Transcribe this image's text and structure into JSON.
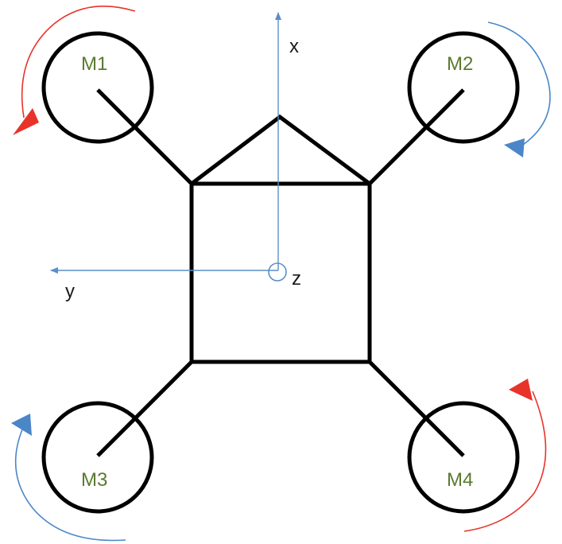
{
  "diagram": {
    "axes": {
      "x_label": "x",
      "y_label": "y",
      "z_label": "z",
      "color": "#5b8ec9"
    },
    "motors": [
      {
        "label": "M1",
        "rotation": "counterclockwise",
        "arrow_color": "#e8332a"
      },
      {
        "label": "M2",
        "rotation": "clockwise",
        "arrow_color": "#4a86c8"
      },
      {
        "label": "M3",
        "rotation": "clockwise",
        "arrow_color": "#4a86c8"
      },
      {
        "label": "M4",
        "rotation": "counterclockwise",
        "arrow_color": "#e8332a"
      }
    ],
    "motor_label_color": "#5a7a2e",
    "frame_color": "#000000"
  }
}
